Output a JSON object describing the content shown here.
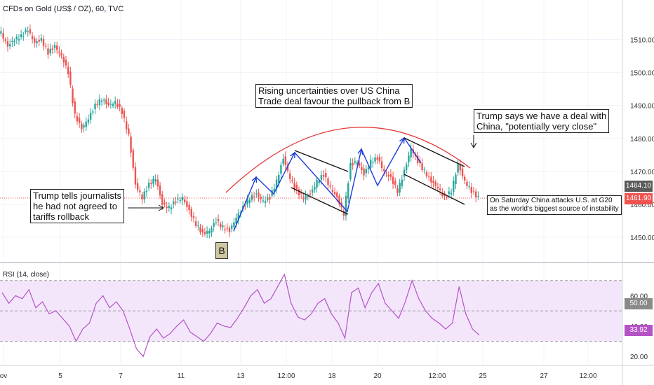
{
  "title": "CFDs on Gold (US$ / OZ), 60, TVC",
  "rsi_title": "RSI (14, close)",
  "price_labels": {
    "last": "1464.10",
    "current": "1461.90"
  },
  "rsi_labels": {
    "level": "50.00",
    "current": "33.92"
  },
  "annotations": {
    "trump_journalists": "Trump tells journalists\nhe had not agreed to\ntariffs rollback",
    "uncertainties": "Rising uncertainties over US China\nTrade deal favour the pullback from B",
    "deal": "Trump says we have a deal with\nChina, \"potentially very close\"",
    "china_attacks": "On Saturday China attacks U.S. at G20\nas the world's biggest source of instability",
    "badge": "B"
  },
  "colors": {
    "up": "#26a69a",
    "down": "#ef5350",
    "rsi_line": "#b553c6",
    "rsi_band": "#f3e6fb",
    "red_line": "#e53935",
    "blue": "#1e3cd8"
  },
  "chart_data": [
    {
      "type": "line",
      "title": "CFDs on Gold (US$ / OZ), 60, TVC",
      "xlabel": "",
      "ylabel": "",
      "ylim": [
        1443,
        1522
      ],
      "y_ticks": [
        1450,
        1460,
        1470,
        1480,
        1490,
        1500,
        1510
      ],
      "y_tick_labels": [
        "1450.00",
        "1460.00",
        "1470.00",
        "1480.00",
        "1490.00",
        "1500.00",
        "1510.00"
      ],
      "x_tick_labels": [
        "ov",
        "5",
        "7",
        "11",
        "13",
        "12:00",
        "18",
        "20",
        "12:00",
        "25",
        "27",
        "12:00"
      ],
      "series": [
        {
          "values": [
            1512,
            1508,
            1510,
            1511,
            1513,
            1509,
            1510,
            1506,
            1508,
            1505,
            1500,
            1487,
            1483,
            1486,
            1490,
            1492,
            1490,
            1491,
            1488,
            1481,
            1466,
            1462,
            1466,
            1468,
            1460,
            1459,
            1461,
            1462,
            1458,
            1454,
            1451,
            1452,
            1455,
            1453,
            1452,
            1456,
            1459,
            1462,
            1463,
            1461,
            1462,
            1467,
            1474,
            1468,
            1464,
            1462,
            1463,
            1467,
            1469,
            1465,
            1462,
            1457,
            1472,
            1473,
            1469,
            1473,
            1474,
            1470,
            1468,
            1464,
            1470,
            1477,
            1473,
            1470,
            1467,
            1465,
            1462,
            1464,
            1472,
            1467,
            1464,
            1462
          ]
        }
      ]
    },
    {
      "type": "line",
      "title": "RSI (14, close)",
      "ylim": [
        15,
        80
      ],
      "y_ticks": [
        20,
        40,
        50,
        60
      ],
      "y_tick_labels": [
        "20.00",
        "40.00",
        "50.00",
        "60.00"
      ],
      "series": [
        {
          "name": "RSI (14, close)",
          "values": [
            62,
            55,
            60,
            58,
            64,
            52,
            56,
            48,
            50,
            45,
            40,
            30,
            38,
            42,
            55,
            60,
            52,
            56,
            50,
            38,
            25,
            20,
            33,
            38,
            32,
            35,
            40,
            44,
            36,
            33,
            30,
            35,
            42,
            40,
            39,
            45,
            52,
            60,
            64,
            55,
            58,
            66,
            74,
            55,
            46,
            44,
            48,
            55,
            58,
            48,
            42,
            32,
            62,
            65,
            52,
            62,
            68,
            55,
            50,
            45,
            56,
            70,
            58,
            50,
            45,
            42,
            38,
            42,
            66,
            48,
            38,
            34
          ]
        }
      ],
      "levels": [
        50
      ]
    }
  ]
}
